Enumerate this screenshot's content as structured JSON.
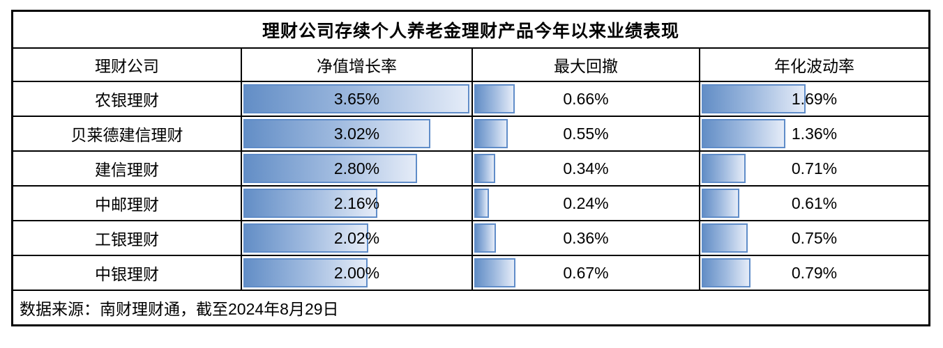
{
  "title": "理财公司存续个人养老金理财产品今年以来业绩表现",
  "columns": {
    "company": "理财公司",
    "growth": "净值增长率",
    "drawdown": "最大回撤",
    "volatility": "年化波动率"
  },
  "rows": [
    {
      "company": "农银理财",
      "growth": "3.65%",
      "drawdown": "0.66%",
      "volatility": "1.69%"
    },
    {
      "company": "贝莱德建信理财",
      "growth": "3.02%",
      "drawdown": "0.55%",
      "volatility": "1.36%"
    },
    {
      "company": "建信理财",
      "growth": "2.80%",
      "drawdown": "0.34%",
      "volatility": "0.71%"
    },
    {
      "company": "中邮理财",
      "growth": "2.16%",
      "drawdown": "0.24%",
      "volatility": "0.61%"
    },
    {
      "company": "工银理财",
      "growth": "2.02%",
      "drawdown": "0.36%",
      "volatility": "0.75%"
    },
    {
      "company": "中银理财",
      "growth": "2.00%",
      "drawdown": "0.67%",
      "volatility": "0.79%"
    }
  ],
  "footer": "数据来源：南财理财通，截至2024年8月29日",
  "colors": {
    "bar_fill_start": "#638EC6",
    "bar_fill_end": "#E5ECF8",
    "bar_border": "#5F8CC8",
    "grid_border": "#000000",
    "background": "#FFFFFF",
    "text": "#000000"
  },
  "chart_data": {
    "type": "table",
    "title": "理财公司存续个人养老金理财产品今年以来业绩表现",
    "categories": [
      "农银理财",
      "贝莱德建信理财",
      "建信理财",
      "中邮理财",
      "工银理财",
      "中银理财"
    ],
    "series": [
      {
        "name": "净值增长率",
        "values": [
          3.65,
          3.02,
          2.8,
          2.16,
          2.02,
          2.0
        ]
      },
      {
        "name": "最大回撤",
        "values": [
          0.66,
          0.55,
          0.34,
          0.24,
          0.36,
          0.67
        ]
      },
      {
        "name": "年化波动率",
        "values": [
          1.69,
          1.36,
          0.71,
          0.61,
          0.75,
          0.79
        ]
      }
    ],
    "unit": "%",
    "bar_scale_max": 3.65,
    "bar_style": "gradient-data-bar",
    "source_note": "数据来源：南财理财通，截至2024年8月29日"
  }
}
